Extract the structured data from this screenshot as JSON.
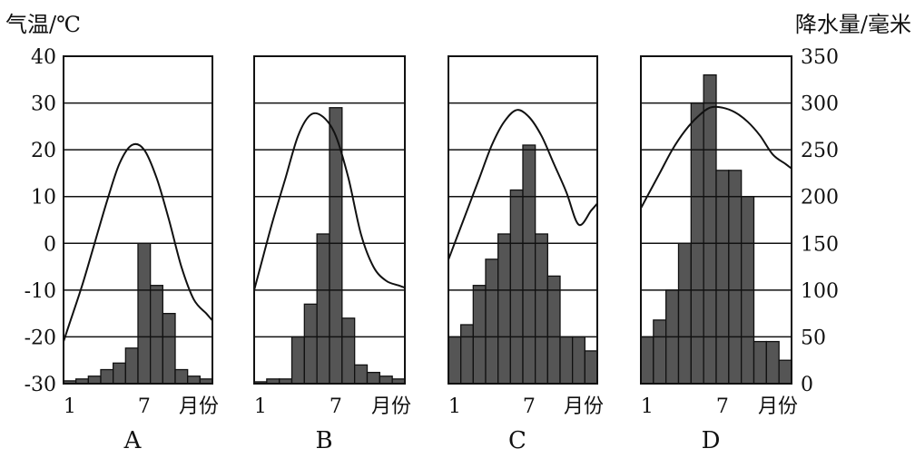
{
  "left_axis": {
    "title": "气温/℃",
    "ticks": [
      40,
      30,
      20,
      10,
      0,
      -10,
      -20,
      -30
    ],
    "range": [
      -30,
      40
    ]
  },
  "right_axis": {
    "title": "降水量/毫米",
    "ticks": [
      350,
      300,
      250,
      200,
      150,
      100,
      50,
      0
    ],
    "range": [
      0,
      350
    ]
  },
  "x_axis": {
    "tick_first": "1",
    "tick_mid": "7",
    "unit": "月份"
  },
  "chart_data": [
    {
      "type": "bar+line",
      "label": "A",
      "x": [
        1,
        2,
        3,
        4,
        5,
        6,
        7,
        8,
        9,
        10,
        11,
        12
      ],
      "temperature": [
        -17,
        -9,
        0,
        9,
        17,
        21,
        20,
        14,
        5,
        -5,
        -12,
        -15
      ],
      "precipitation": [
        3,
        5,
        8,
        15,
        22,
        38,
        150,
        105,
        75,
        15,
        8,
        5
      ]
    },
    {
      "type": "bar+line",
      "label": "B",
      "x": [
        1,
        2,
        3,
        4,
        5,
        6,
        7,
        8,
        9,
        10,
        11,
        12
      ],
      "temperature": [
        -5,
        5,
        14,
        23,
        27.5,
        27,
        23,
        14,
        2,
        -5,
        -8,
        -9
      ],
      "precipitation": [
        2,
        5,
        5,
        50,
        85,
        160,
        295,
        70,
        20,
        12,
        8,
        5
      ]
    },
    {
      "type": "bar+line",
      "label": "C",
      "x": [
        1,
        2,
        3,
        4,
        5,
        6,
        7,
        8,
        9,
        10,
        11,
        12
      ],
      "temperature": [
        0,
        7,
        14,
        21,
        26,
        28.5,
        27,
        23,
        17,
        11,
        4,
        7
      ],
      "precipitation": [
        50,
        63,
        105,
        133,
        160,
        207,
        255,
        160,
        115,
        50,
        50,
        35
      ]
    },
    {
      "type": "bar+line",
      "label": "D",
      "x": [
        1,
        2,
        3,
        4,
        5,
        6,
        7,
        8,
        9,
        10,
        11,
        12
      ],
      "temperature": [
        10,
        15,
        20,
        24,
        27,
        29,
        29,
        28,
        26,
        23,
        19,
        17
      ],
      "precipitation": [
        50,
        68,
        100,
        150,
        300,
        330,
        228,
        228,
        200,
        45,
        45,
        25
      ]
    }
  ]
}
